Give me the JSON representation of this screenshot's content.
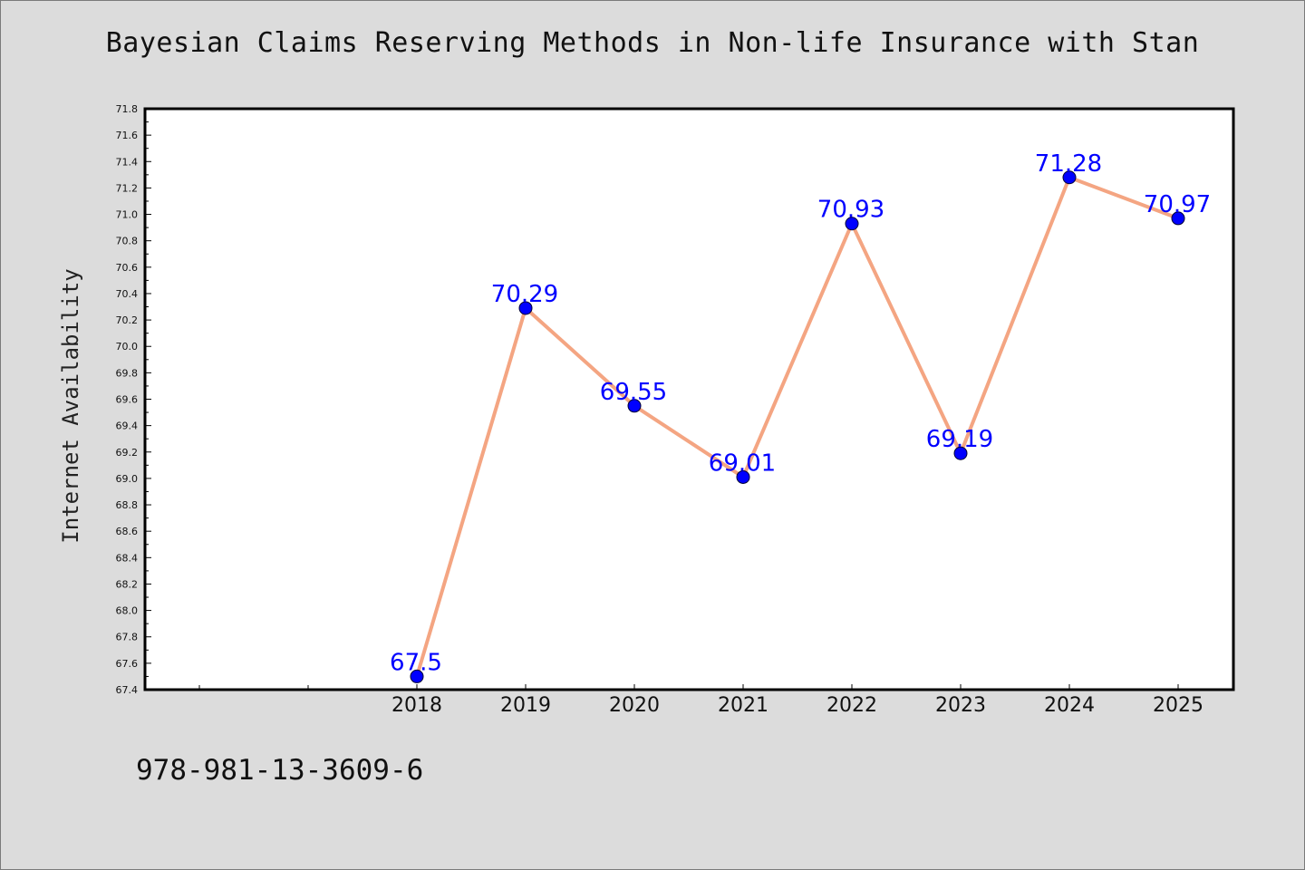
{
  "chart_data": {
    "type": "line",
    "title": "Bayesian Claims Reserving Methods in Non-life Insurance with Stan",
    "xlabel": "",
    "ylabel": "Internet Availability",
    "categories": [
      "2018",
      "2019",
      "2020",
      "2021",
      "2022",
      "2023",
      "2024",
      "2025"
    ],
    "series": [
      {
        "values": [
          67.5,
          70.29,
          69.55,
          69.01,
          70.93,
          69.19,
          71.28,
          70.97
        ],
        "data_labels": [
          "67.5",
          "70.29",
          "69.55",
          "69.01",
          "70.93",
          "69.19",
          "71.28",
          "70.97"
        ],
        "line_color": "#f4a582",
        "marker_color": "#0000ff"
      }
    ],
    "ylim": [
      67.4,
      71.8
    ],
    "yticks": [
      "67.4",
      "67.6",
      "67.8",
      "68.0",
      "68.2",
      "68.4",
      "68.6",
      "68.8",
      "69.0",
      "69.2",
      "69.4",
      "69.6",
      "69.8",
      "70.0",
      "70.2",
      "70.4",
      "70.6",
      "70.8",
      "71.0",
      "71.2",
      "71.4",
      "71.6",
      "71.8"
    ],
    "grid": false,
    "legend": "none"
  },
  "footer": {
    "code": "978-981-13-3609-6"
  },
  "colors": {
    "background": "#dcdcdc",
    "plot_background": "#ffffff",
    "line": "#f4a582",
    "marker": "#0000ff",
    "data_label": "#0000ff"
  }
}
